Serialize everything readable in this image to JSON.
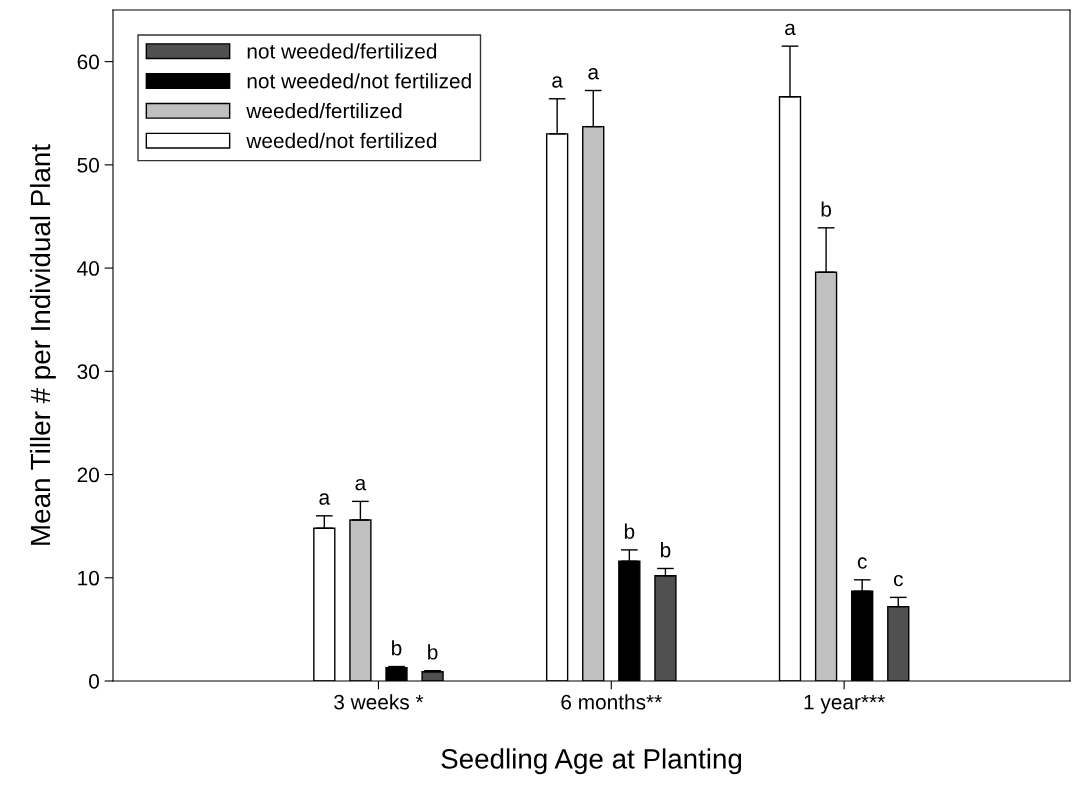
{
  "chart_data": {
    "type": "bar",
    "xlabel": "Seedling Age at Planting",
    "ylabel": "Mean Tiller # per Individual Plant",
    "categories": [
      "3 weeks *",
      "6 months**",
      "1 year***"
    ],
    "ylim": [
      0,
      65
    ],
    "yticks": [
      0,
      10,
      20,
      30,
      40,
      50,
      60
    ],
    "grid": false,
    "legend": "top left",
    "series": [
      {
        "name": "weeded/not fertilized",
        "color": "#ffffff",
        "values": [
          14.8,
          53.0,
          56.6
        ],
        "errors": [
          [
            14.8,
            16.0
          ],
          [
            53.0,
            56.4
          ],
          [
            56.6,
            61.5
          ]
        ],
        "value_labels": [
          "a",
          "a",
          "a"
        ]
      },
      {
        "name": "weeded/fertilized",
        "color": "#c0c0c0",
        "values": [
          15.6,
          53.7,
          39.6
        ],
        "errors": [
          [
            15.6,
            17.4
          ],
          [
            53.7,
            57.2
          ],
          [
            39.6,
            43.9
          ]
        ],
        "value_labels": [
          "a",
          "a",
          "b"
        ]
      },
      {
        "name": "not weeded/not fertilized",
        "color": "#000000",
        "values": [
          1.3,
          11.6,
          8.7
        ],
        "errors": [
          [
            1.3,
            1.4
          ],
          [
            11.6,
            12.7
          ],
          [
            8.7,
            9.8
          ]
        ],
        "value_labels": [
          "b",
          "b",
          "c"
        ]
      },
      {
        "name": "not weeded/fertilized",
        "color": "#505050",
        "values": [
          0.9,
          10.2,
          7.2
        ],
        "errors": [
          [
            0.9,
            1.0
          ],
          [
            10.2,
            10.9
          ],
          [
            7.2,
            8.1
          ]
        ],
        "value_labels": [
          "b",
          "b",
          "c"
        ]
      }
    ]
  }
}
